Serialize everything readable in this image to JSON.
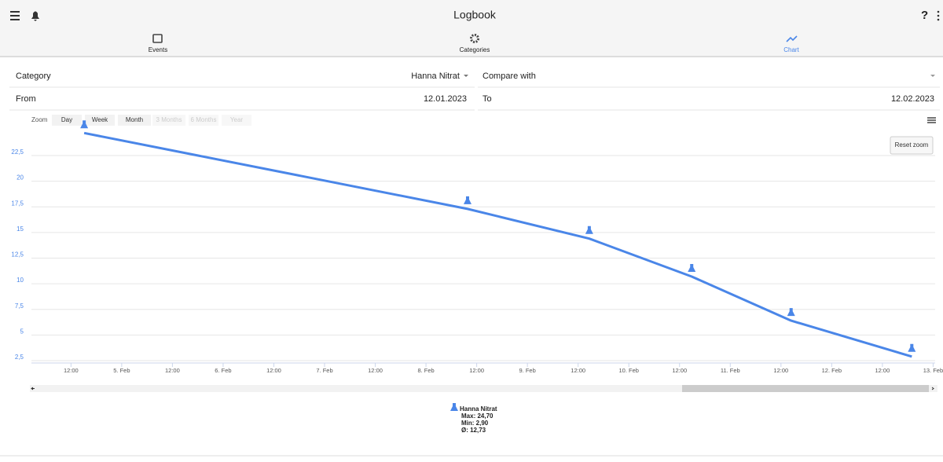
{
  "header": {
    "title": "Logbook",
    "tabs": [
      "Events",
      "Categories",
      "Chart"
    ]
  },
  "form": {
    "category_label": "Category",
    "category_value": "Hanna Nitrat",
    "compare_label": "Compare with",
    "from_label": "From",
    "from_value": "12.01.2023",
    "to_label": "To",
    "to_value": "12.02.2023"
  },
  "zoom": {
    "label": "Zoom",
    "buttons": [
      "Day",
      "Week",
      "Month",
      "3 Months",
      "6 Months",
      "Year"
    ],
    "reset": "Reset zoom"
  },
  "chart": {
    "type": "line",
    "color": "#4a86e8",
    "x": [
      4.63,
      8.41,
      9.61,
      10.62,
      11.6,
      12.79
    ],
    "values": [
      24.7,
      17.3,
      14.4,
      10.7,
      6.4,
      2.9
    ],
    "xlim": [
      4.11,
      13.02
    ],
    "xticks": [
      {
        "value": 4.5,
        "label": "12:00"
      },
      {
        "value": 5,
        "label": "5. Feb"
      },
      {
        "value": 5.5,
        "label": "12:00"
      },
      {
        "value": 6,
        "label": "6. Feb"
      },
      {
        "value": 6.5,
        "label": "12:00"
      },
      {
        "value": 7,
        "label": "7. Feb"
      },
      {
        "value": 7.5,
        "label": "12:00"
      },
      {
        "value": 8,
        "label": "8. Feb"
      },
      {
        "value": 8.5,
        "label": "12:00"
      },
      {
        "value": 9,
        "label": "9. Feb"
      },
      {
        "value": 9.5,
        "label": "12:00"
      },
      {
        "value": 10,
        "label": "10. Feb"
      },
      {
        "value": 10.5,
        "label": "12:00"
      },
      {
        "value": 11,
        "label": "11. Feb"
      },
      {
        "value": 11.5,
        "label": "12:00"
      },
      {
        "value": 12,
        "label": "12. Feb"
      },
      {
        "value": 12.5,
        "label": "12:00"
      },
      {
        "value": 13,
        "label": "13. Feb"
      }
    ],
    "ylim": [
      2.27,
      24.8
    ],
    "yticks": [
      {
        "value": 2.5,
        "label": "2,5"
      },
      5,
      {
        "value": 7.5,
        "label": "7,5"
      },
      10,
      {
        "value": 12.5,
        "label": "12,5"
      },
      15,
      {
        "value": 17.5,
        "label": "17,5"
      },
      20,
      {
        "value": 22.5,
        "label": "22,5"
      }
    ],
    "grid": true,
    "legend": {
      "name": "Hanna Nitrat",
      "max": "Max: 24,70",
      "min": "Min: 2,90",
      "avg": "Ø: 12,73"
    }
  }
}
